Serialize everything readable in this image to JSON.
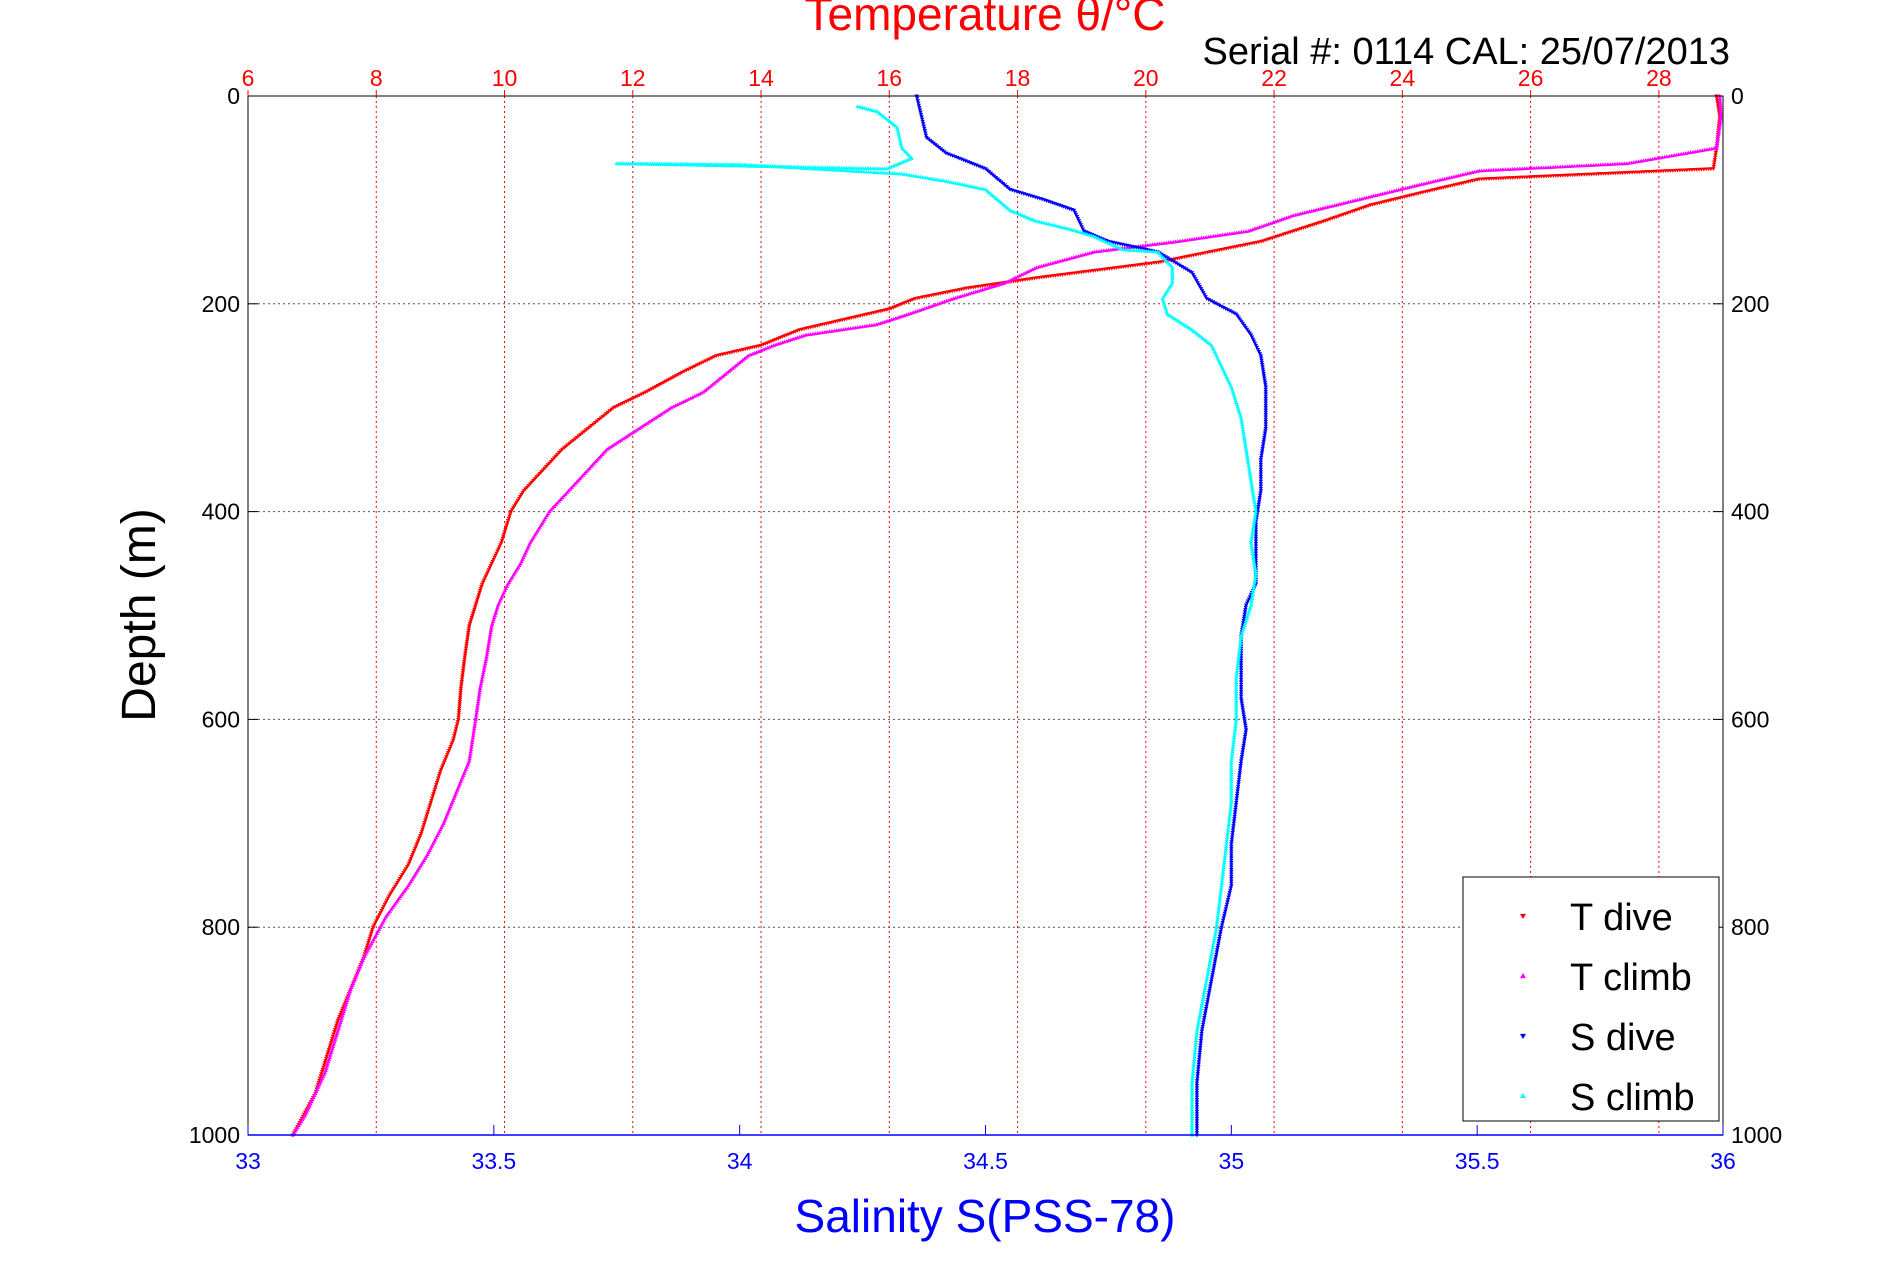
{
  "chart_data": {
    "type": "scatter",
    "title": "Temperature θ/°C",
    "subtitle": "Serial #: 0114  CAL: 25/07/2013",
    "ylabel": "Depth (m)",
    "xlabel": "Salinity S(PSS-78)",
    "grid": true,
    "legend_placement": "bottom-right",
    "y_axis": {
      "range": [
        0,
        1000
      ],
      "reversed": true,
      "ticks": [
        "0",
        "200",
        "400",
        "600",
        "800",
        "1000"
      ],
      "ticks_right": true
    },
    "x_top_axis": {
      "quantity": "temperature",
      "range": [
        6,
        29
      ],
      "ticks": [
        "6",
        "8",
        "10",
        "12",
        "14",
        "16",
        "18",
        "20",
        "22",
        "24",
        "26",
        "28"
      ],
      "color": "#ff0000"
    },
    "x_bottom_axis": {
      "quantity": "salinity",
      "range": [
        33,
        36
      ],
      "ticks": [
        "33",
        "33.5",
        "34",
        "34.5",
        "35",
        "35.5",
        "36"
      ],
      "color": "#0000ff"
    },
    "series": [
      {
        "name": "T dive",
        "axis": "temperature",
        "color": "#ff0000",
        "marker": "triangle-down",
        "points": [
          [
            28.9,
            0
          ],
          [
            28.95,
            20
          ],
          [
            28.9,
            50
          ],
          [
            28.85,
            70
          ],
          [
            25.2,
            80
          ],
          [
            24.5,
            90
          ],
          [
            23.5,
            105
          ],
          [
            22.8,
            120
          ],
          [
            21.8,
            140
          ],
          [
            20.2,
            160
          ],
          [
            18.3,
            175
          ],
          [
            17.2,
            185
          ],
          [
            16.4,
            195
          ],
          [
            16.0,
            205
          ],
          [
            15.3,
            215
          ],
          [
            14.6,
            225
          ],
          [
            14.0,
            240
          ],
          [
            13.3,
            250
          ],
          [
            12.8,
            265
          ],
          [
            12.2,
            285
          ],
          [
            11.7,
            300
          ],
          [
            11.3,
            320
          ],
          [
            10.9,
            340
          ],
          [
            10.6,
            360
          ],
          [
            10.3,
            380
          ],
          [
            10.1,
            400
          ],
          [
            9.95,
            430
          ],
          [
            9.8,
            450
          ],
          [
            9.65,
            470
          ],
          [
            9.55,
            490
          ],
          [
            9.45,
            510
          ],
          [
            9.38,
            540
          ],
          [
            9.32,
            570
          ],
          [
            9.28,
            600
          ],
          [
            9.2,
            620
          ],
          [
            9.0,
            650
          ],
          [
            8.85,
            680
          ],
          [
            8.7,
            710
          ],
          [
            8.5,
            740
          ],
          [
            8.2,
            770
          ],
          [
            7.95,
            800
          ],
          [
            7.8,
            830
          ],
          [
            7.6,
            860
          ],
          [
            7.4,
            890
          ],
          [
            7.25,
            920
          ],
          [
            7.05,
            960
          ],
          [
            6.7,
            1000
          ]
        ]
      },
      {
        "name": "T climb",
        "axis": "temperature",
        "color": "#ff00ff",
        "marker": "triangle-up",
        "points": [
          [
            28.95,
            0
          ],
          [
            28.97,
            20
          ],
          [
            28.9,
            50
          ],
          [
            27.5,
            65
          ],
          [
            25.2,
            72
          ],
          [
            24.3,
            85
          ],
          [
            23.3,
            100
          ],
          [
            22.3,
            115
          ],
          [
            21.6,
            130
          ],
          [
            20.5,
            140
          ],
          [
            19.2,
            150
          ],
          [
            18.3,
            165
          ],
          [
            17.8,
            180
          ],
          [
            17.0,
            195
          ],
          [
            16.3,
            210
          ],
          [
            15.8,
            220
          ],
          [
            14.7,
            230
          ],
          [
            14.2,
            240
          ],
          [
            13.8,
            250
          ],
          [
            13.5,
            265
          ],
          [
            13.1,
            285
          ],
          [
            12.6,
            300
          ],
          [
            12.1,
            320
          ],
          [
            11.6,
            340
          ],
          [
            11.3,
            360
          ],
          [
            11.0,
            380
          ],
          [
            10.7,
            400
          ],
          [
            10.4,
            430
          ],
          [
            10.25,
            450
          ],
          [
            10.05,
            470
          ],
          [
            9.9,
            490
          ],
          [
            9.8,
            510
          ],
          [
            9.72,
            540
          ],
          [
            9.62,
            570
          ],
          [
            9.55,
            600
          ],
          [
            9.45,
            640
          ],
          [
            9.25,
            670
          ],
          [
            9.05,
            700
          ],
          [
            8.8,
            730
          ],
          [
            8.5,
            760
          ],
          [
            8.15,
            790
          ],
          [
            7.8,
            830
          ],
          [
            7.6,
            860
          ],
          [
            7.4,
            900
          ],
          [
            7.2,
            940
          ],
          [
            6.9,
            980
          ],
          [
            6.7,
            1000
          ]
        ]
      },
      {
        "name": "S dive",
        "axis": "salinity",
        "color": "#0000ff",
        "marker": "triangle-down",
        "points": [
          [
            34.36,
            0
          ],
          [
            34.37,
            20
          ],
          [
            34.38,
            40
          ],
          [
            34.42,
            55
          ],
          [
            34.5,
            70
          ],
          [
            34.55,
            90
          ],
          [
            34.62,
            100
          ],
          [
            34.68,
            110
          ],
          [
            34.7,
            130
          ],
          [
            34.75,
            140
          ],
          [
            34.85,
            150
          ],
          [
            34.92,
            170
          ],
          [
            34.95,
            195
          ],
          [
            35.01,
            210
          ],
          [
            35.04,
            230
          ],
          [
            35.06,
            250
          ],
          [
            35.07,
            280
          ],
          [
            35.07,
            320
          ],
          [
            35.06,
            350
          ],
          [
            35.06,
            380
          ],
          [
            35.05,
            410
          ],
          [
            35.05,
            440
          ],
          [
            35.05,
            470
          ],
          [
            35.03,
            490
          ],
          [
            35.02,
            520
          ],
          [
            35.02,
            550
          ],
          [
            35.02,
            580
          ],
          [
            35.03,
            610
          ],
          [
            35.02,
            640
          ],
          [
            35.01,
            680
          ],
          [
            35.0,
            720
          ],
          [
            35.0,
            760
          ],
          [
            34.98,
            800
          ],
          [
            34.96,
            850
          ],
          [
            34.94,
            900
          ],
          [
            34.93,
            950
          ],
          [
            34.93,
            1000
          ]
        ]
      },
      {
        "name": "S climb",
        "axis": "salinity",
        "color": "#00ffff",
        "marker": "triangle-up",
        "points": [
          [
            34.24,
            10
          ],
          [
            34.28,
            15
          ],
          [
            34.32,
            30
          ],
          [
            34.33,
            50
          ],
          [
            34.35,
            60
          ],
          [
            34.3,
            70
          ],
          [
            33.75,
            65
          ],
          [
            34.0,
            66
          ],
          [
            34.33,
            75
          ],
          [
            34.42,
            82
          ],
          [
            34.5,
            90
          ],
          [
            34.55,
            110
          ],
          [
            34.6,
            120
          ],
          [
            34.67,
            128
          ],
          [
            34.72,
            135
          ],
          [
            34.78,
            148
          ],
          [
            34.85,
            150
          ],
          [
            34.88,
            165
          ],
          [
            34.88,
            180
          ],
          [
            34.86,
            195
          ],
          [
            34.87,
            210
          ],
          [
            34.92,
            225
          ],
          [
            34.96,
            240
          ],
          [
            34.98,
            260
          ],
          [
            35.0,
            280
          ],
          [
            35.02,
            310
          ],
          [
            35.03,
            340
          ],
          [
            35.04,
            370
          ],
          [
            35.05,
            400
          ],
          [
            35.04,
            430
          ],
          [
            35.05,
            460
          ],
          [
            35.04,
            490
          ],
          [
            35.02,
            520
          ],
          [
            35.01,
            560
          ],
          [
            35.01,
            600
          ],
          [
            35.0,
            640
          ],
          [
            35.0,
            680
          ],
          [
            34.99,
            720
          ],
          [
            34.98,
            760
          ],
          [
            34.97,
            800
          ],
          [
            34.95,
            850
          ],
          [
            34.93,
            900
          ],
          [
            34.92,
            950
          ],
          [
            34.92,
            1000
          ]
        ]
      }
    ]
  }
}
